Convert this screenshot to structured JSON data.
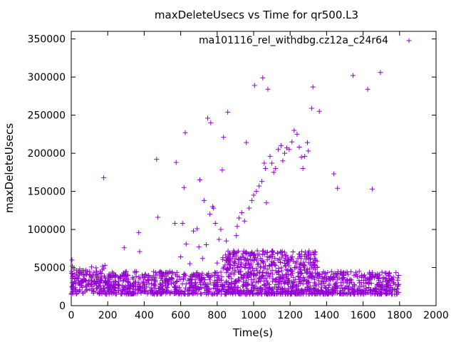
{
  "chart_data": {
    "type": "scatter",
    "title": "maxDeleteUsecs vs Time for qr500.L3",
    "xlabel": "Time(s)",
    "ylabel": "maxDeleteUsecs",
    "xlim": [
      0,
      2000
    ],
    "ylim": [
      0,
      360000
    ],
    "xticks": [
      "0",
      "200",
      "400",
      "600",
      "800",
      "1000",
      "1200",
      "1400",
      "1600",
      "1800",
      "2000"
    ],
    "yticks": [
      "0",
      "50000",
      "100000",
      "150000",
      "200000",
      "250000",
      "300000",
      "350000"
    ],
    "grid": false,
    "legend_position": "top-right",
    "marker": "plus",
    "series": [
      {
        "name": "ma101116_rel_withdbg.cz12a_c24r64",
        "color": "#9400d3",
        "points": [
          [
            0,
            15000
          ],
          [
            2,
            45000
          ],
          [
            4,
            60000
          ],
          [
            6,
            52000
          ],
          [
            8,
            38000
          ],
          [
            10,
            25000
          ],
          [
            15,
            48000
          ],
          [
            20,
            41000
          ],
          [
            25,
            30000
          ],
          [
            30,
            46000
          ],
          [
            40,
            36000
          ],
          [
            50,
            43000
          ],
          [
            60,
            24000
          ],
          [
            70,
            39000
          ],
          [
            80,
            33000
          ],
          [
            90,
            28000
          ],
          [
            100,
            40000
          ],
          [
            110,
            35000
          ],
          [
            120,
            22000
          ],
          [
            130,
            31000
          ],
          [
            140,
            37000
          ],
          [
            150,
            26000
          ],
          [
            160,
            34000
          ],
          [
            170,
            47000
          ],
          [
            178,
            168000
          ],
          [
            185,
            53000
          ],
          [
            200,
            18000
          ],
          [
            220,
            29000
          ],
          [
            240,
            24000
          ],
          [
            260,
            32000
          ],
          [
            280,
            21000
          ],
          [
            290,
            76000
          ],
          [
            300,
            38000
          ],
          [
            320,
            27000
          ],
          [
            340,
            35000
          ],
          [
            370,
            96000
          ],
          [
            375,
            71000
          ],
          [
            400,
            26000
          ],
          [
            420,
            33000
          ],
          [
            440,
            29000
          ],
          [
            460,
            37000
          ],
          [
            468,
            192000
          ],
          [
            475,
            116000
          ],
          [
            500,
            41000
          ],
          [
            520,
            34000
          ],
          [
            540,
            45000
          ],
          [
            560,
            30000
          ],
          [
            568,
            108000
          ],
          [
            575,
            188000
          ],
          [
            600,
            64000
          ],
          [
            610,
            108000
          ],
          [
            618,
            155000
          ],
          [
            625,
            227000
          ],
          [
            630,
            81000
          ],
          [
            650,
            55000
          ],
          [
            670,
            98000
          ],
          [
            690,
            101000
          ],
          [
            700,
            77000
          ],
          [
            705,
            165000
          ],
          [
            720,
            62000
          ],
          [
            728,
            138000
          ],
          [
            740,
            80000
          ],
          [
            748,
            246000
          ],
          [
            760,
            120000
          ],
          [
            765,
            240000
          ],
          [
            775,
            130000
          ],
          [
            780,
            128000
          ],
          [
            790,
            108000
          ],
          [
            800,
            56000
          ],
          [
            810,
            87000
          ],
          [
            820,
            100000
          ],
          [
            828,
            178000
          ],
          [
            835,
            221000
          ],
          [
            850,
            85000
          ],
          [
            858,
            254000
          ],
          [
            870,
            60000
          ],
          [
            890,
            72000
          ],
          [
            905,
            92000
          ],
          [
            910,
            104000
          ],
          [
            920,
            115000
          ],
          [
            935,
            122000
          ],
          [
            950,
            111000
          ],
          [
            960,
            214000
          ],
          [
            975,
            128000
          ],
          [
            990,
            138000
          ],
          [
            1000,
            145000
          ],
          [
            1005,
            289000
          ],
          [
            1015,
            150000
          ],
          [
            1030,
            157000
          ],
          [
            1045,
            163000
          ],
          [
            1050,
            299000
          ],
          [
            1058,
            187000
          ],
          [
            1065,
            180000
          ],
          [
            1070,
            135000
          ],
          [
            1078,
            284000
          ],
          [
            1090,
            196000
          ],
          [
            1100,
            187000
          ],
          [
            1110,
            175000
          ],
          [
            1120,
            180000
          ],
          [
            1135,
            205000
          ],
          [
            1150,
            210000
          ],
          [
            1160,
            190000
          ],
          [
            1170,
            200000
          ],
          [
            1182,
            207000
          ],
          [
            1195,
            205000
          ],
          [
            1210,
            215000
          ],
          [
            1222,
            230000
          ],
          [
            1238,
            225000
          ],
          [
            1250,
            208000
          ],
          [
            1262,
            195000
          ],
          [
            1270,
            180000
          ],
          [
            1280,
            196000
          ],
          [
            1295,
            214000
          ],
          [
            1300,
            203000
          ],
          [
            1318,
            259000
          ],
          [
            1325,
            287000
          ],
          [
            1360,
            255000
          ],
          [
            1440,
            173000
          ],
          [
            1460,
            154000
          ],
          [
            1545,
            302000
          ],
          [
            1625,
            284000
          ],
          [
            1650,
            153000
          ],
          [
            1695,
            306000
          ]
        ],
        "band": [
          {
            "x": [
              0,
              1800
            ],
            "y_min": 15000,
            "y_max": 45000,
            "density": "high"
          },
          {
            "x": [
              830,
              1350
            ],
            "y_min": 45000,
            "y_max": 72000,
            "density": "medium"
          }
        ]
      }
    ]
  }
}
